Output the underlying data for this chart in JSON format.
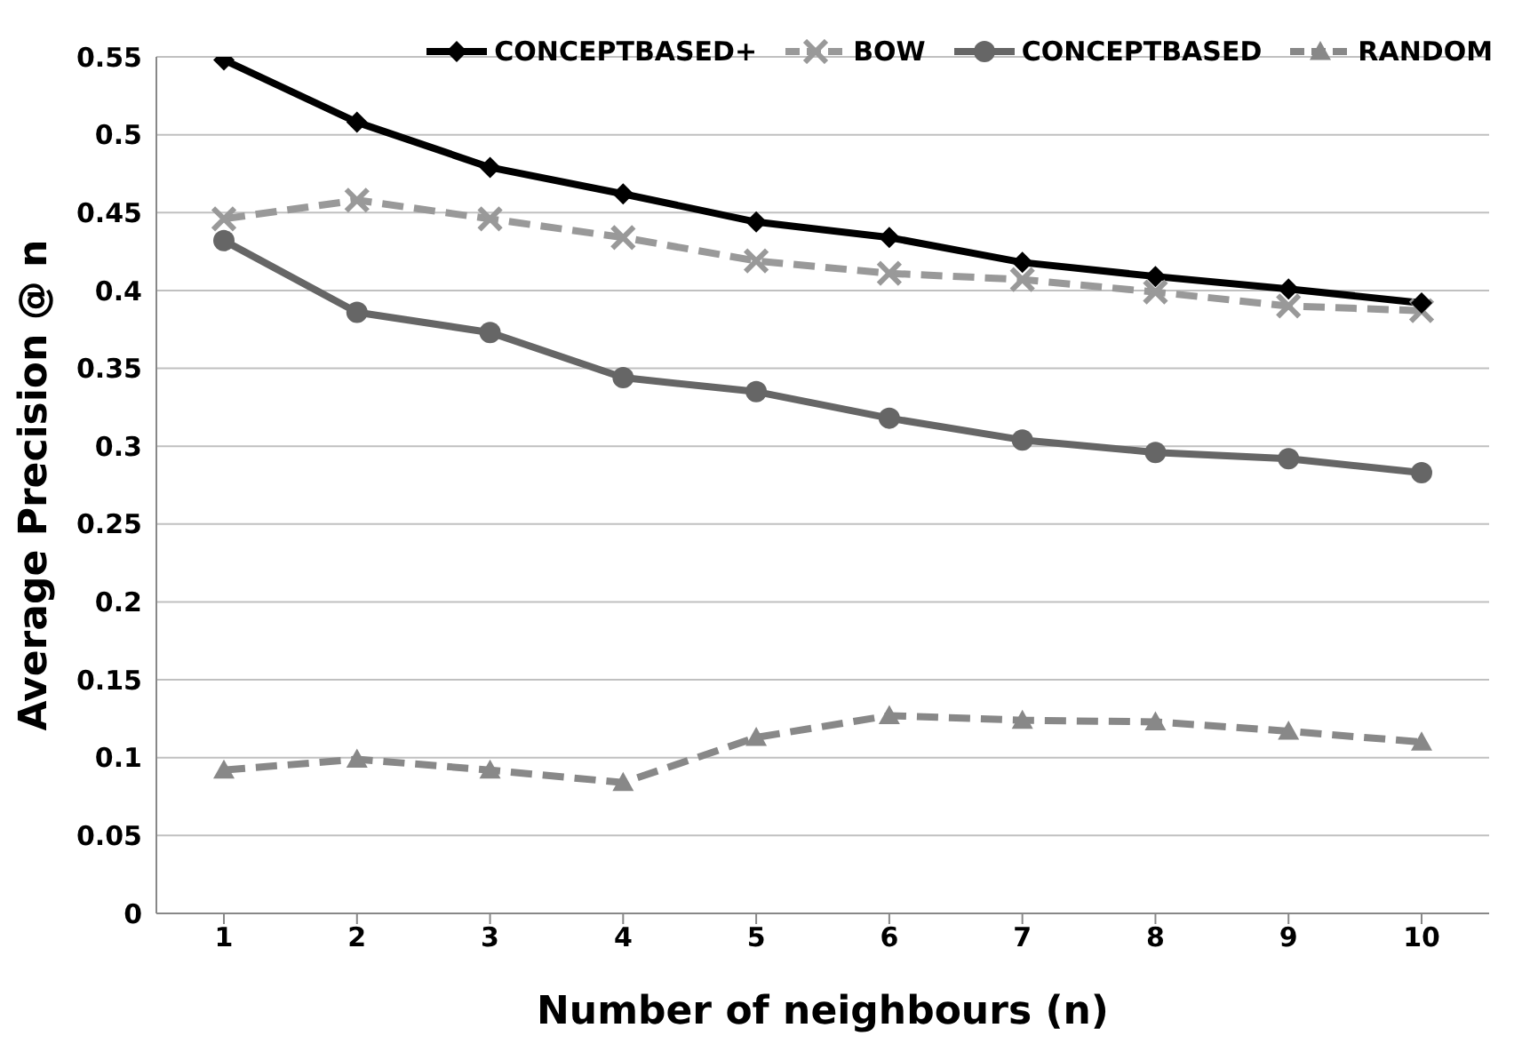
{
  "chart_data": {
    "type": "line",
    "xlabel": "Number of neighbours (n)",
    "ylabel": "Average Precision @ n",
    "categories": [
      "1",
      "2",
      "3",
      "4",
      "5",
      "6",
      "7",
      "8",
      "9",
      "10"
    ],
    "series": [
      {
        "name": "CONCEPTBASED+",
        "color": "#000000",
        "marker": "diamond",
        "line_style": "solid",
        "values": [
          0.548,
          0.508,
          0.479,
          0.462,
          0.444,
          0.434,
          0.418,
          0.409,
          0.401,
          0.392
        ]
      },
      {
        "name": "BOW",
        "color": "#999999",
        "marker": "cross",
        "line_style": "dashed",
        "values": [
          0.446,
          0.458,
          0.446,
          0.434,
          0.419,
          0.411,
          0.407,
          0.399,
          0.39,
          0.387
        ]
      },
      {
        "name": "CONCEPTBASED",
        "color": "#666666",
        "marker": "circle",
        "line_style": "solid",
        "values": [
          0.432,
          0.386,
          0.373,
          0.344,
          0.335,
          0.318,
          0.304,
          0.296,
          0.292,
          0.283
        ]
      },
      {
        "name": "RANDOM",
        "color": "#888888",
        "marker": "triangle",
        "line_style": "dashed",
        "values": [
          0.092,
          0.099,
          0.092,
          0.084,
          0.113,
          0.127,
          0.124,
          0.123,
          0.117,
          0.11
        ]
      }
    ],
    "ylim": [
      0,
      0.55
    ],
    "yticks": [
      0,
      0.05,
      0.1,
      0.15,
      0.2,
      0.25,
      0.3,
      0.35,
      0.4,
      0.45,
      0.5,
      0.55
    ],
    "grid": "y",
    "legend": "top right"
  }
}
